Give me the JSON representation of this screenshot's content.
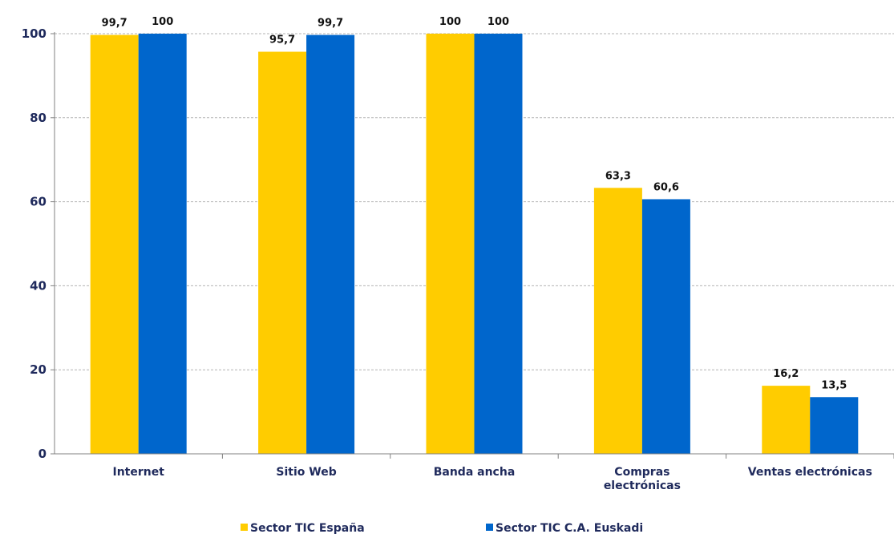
{
  "chart_data": {
    "type": "bar",
    "title": "",
    "xlabel": "",
    "ylabel": "",
    "ylim": [
      0,
      100
    ],
    "yticks": [
      0,
      20,
      40,
      60,
      80,
      100
    ],
    "grid": true,
    "legend_position": "bottom",
    "categories": [
      [
        "Internet"
      ],
      [
        "Sitio Web"
      ],
      [
        "Banda ancha"
      ],
      [
        "Compras",
        "electrónicas"
      ],
      [
        "Ventas  electrónicas"
      ]
    ],
    "series": [
      {
        "name": "Sector TIC España",
        "color": "#ffcc00",
        "values": [
          99.7,
          95.7,
          100,
          63.3,
          16.2
        ],
        "labels": [
          "99,7",
          "95,7",
          "100",
          "63,3",
          "16,2"
        ]
      },
      {
        "name": "Sector TIC C.A. Euskadi",
        "color": "#0066cc",
        "values": [
          100,
          99.7,
          100,
          60.6,
          13.5
        ],
        "labels": [
          "100",
          "99,7",
          "100",
          "60,6",
          "13,5"
        ]
      }
    ]
  }
}
